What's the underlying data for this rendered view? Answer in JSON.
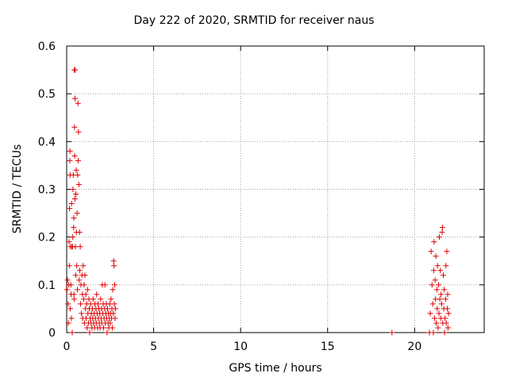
{
  "chart_data": {
    "type": "scatter",
    "title": "Day 222 of 2020, SRMTID for receiver naus",
    "xlabel": "GPS time / hours",
    "ylabel": "SRMTID / TECUs",
    "xlim": [
      0,
      24
    ],
    "ylim": [
      0,
      0.6
    ],
    "x_ticks": [
      0,
      5,
      10,
      15,
      20
    ],
    "y_ticks": [
      0,
      0.1,
      0.2,
      0.3,
      0.4,
      0.5,
      0.6
    ],
    "x_tick_labels": [
      "0",
      "5",
      "10",
      "15",
      "20"
    ],
    "y_tick_labels": [
      "0",
      "0.1",
      "0.2",
      "0.3",
      "0.4",
      "0.5",
      "0.6"
    ],
    "grid": true,
    "marker": "+",
    "color": "#dd0000",
    "series": [
      {
        "points": [
          [
            0.02,
            0.09
          ],
          [
            0.05,
            0.11
          ],
          [
            0.08,
            0.06
          ],
          [
            0.1,
            0.02
          ],
          [
            0.12,
            0.1
          ],
          [
            0.14,
            0.19
          ],
          [
            0.15,
            0.14
          ],
          [
            0.16,
            0.26
          ],
          [
            0.18,
            0.36
          ],
          [
            0.19,
            0.38
          ],
          [
            0.2,
            0.33
          ],
          [
            0.21,
            0.05
          ],
          [
            0.22,
            0.18
          ],
          [
            0.24,
            0.1
          ],
          [
            0.25,
            0.08
          ],
          [
            0.27,
            0.03
          ],
          [
            0.28,
            0.27
          ],
          [
            0.3,
            0.18
          ],
          [
            0.32,
            0.0
          ],
          [
            0.33,
            0.18
          ],
          [
            0.35,
            0.2
          ],
          [
            0.36,
            0.3
          ],
          [
            0.38,
            0.33
          ],
          [
            0.4,
            0.22
          ],
          [
            0.41,
            0.24
          ],
          [
            0.42,
            0.08
          ],
          [
            0.43,
            0.07
          ],
          [
            0.44,
            0.55
          ],
          [
            0.45,
            0.43
          ],
          [
            0.46,
            0.37
          ],
          [
            0.47,
            0.28
          ],
          [
            0.48,
            0.49
          ],
          [
            0.49,
            0.55
          ],
          [
            0.5,
            0.18
          ],
          [
            0.52,
            0.12
          ],
          [
            0.53,
            0.29
          ],
          [
            0.55,
            0.34
          ],
          [
            0.56,
            0.21
          ],
          [
            0.58,
            0.14
          ],
          [
            0.6,
            0.25
          ],
          [
            0.62,
            0.09
          ],
          [
            0.63,
            0.33
          ],
          [
            0.65,
            0.48
          ],
          [
            0.66,
            0.36
          ],
          [
            0.68,
            0.42
          ],
          [
            0.7,
            0.31
          ],
          [
            0.72,
            0.11
          ],
          [
            0.74,
            0.21
          ],
          [
            0.75,
            0.13
          ],
          [
            0.78,
            0.18
          ],
          [
            0.8,
            0.06
          ],
          [
            0.82,
            0.1
          ],
          [
            0.85,
            0.04
          ],
          [
            0.88,
            0.12
          ],
          [
            0.9,
            0.08
          ],
          [
            0.92,
            0.03
          ],
          [
            0.95,
            0.14
          ],
          [
            0.98,
            0.07
          ],
          [
            1.0,
            0.1
          ],
          [
            1.02,
            0.02
          ],
          [
            1.05,
            0.12
          ],
          [
            1.08,
            0.05
          ],
          [
            1.1,
            0.08
          ],
          [
            1.12,
            0.03
          ],
          [
            1.15,
            0.06
          ],
          [
            1.18,
            0.01
          ],
          [
            1.2,
            0.09
          ],
          [
            1.22,
            0.04
          ],
          [
            1.25,
            0.02
          ],
          [
            1.28,
            0.07
          ],
          [
            1.3,
            0.05
          ],
          [
            1.32,
            0.0
          ],
          [
            1.35,
            0.03
          ],
          [
            1.38,
            0.06
          ],
          [
            1.4,
            0.02
          ],
          [
            1.42,
            0.04
          ],
          [
            1.45,
            0.01
          ],
          [
            1.48,
            0.05
          ],
          [
            1.5,
            0.03
          ],
          [
            1.52,
            0.07
          ],
          [
            1.55,
            0.02
          ],
          [
            1.58,
            0.04
          ],
          [
            1.6,
            0.01
          ],
          [
            1.62,
            0.06
          ],
          [
            1.65,
            0.03
          ],
          [
            1.68,
            0.05
          ],
          [
            1.7,
            0.02
          ],
          [
            1.72,
            0.08
          ],
          [
            1.75,
            0.04
          ],
          [
            1.78,
            0.01
          ],
          [
            1.8,
            0.06
          ],
          [
            1.82,
            0.03
          ],
          [
            1.85,
            0.05
          ],
          [
            1.88,
            0.02
          ],
          [
            1.9,
            0.04
          ],
          [
            1.92,
            0.01
          ],
          [
            1.95,
            0.07
          ],
          [
            1.98,
            0.03
          ],
          [
            2.0,
            0.05
          ],
          [
            2.02,
            0.02
          ],
          [
            2.05,
            0.1
          ],
          [
            2.08,
            0.04
          ],
          [
            2.1,
            0.06
          ],
          [
            2.12,
            0.01
          ],
          [
            2.15,
            0.03
          ],
          [
            2.18,
            0.05
          ],
          [
            2.2,
            0.1
          ],
          [
            2.22,
            0.02
          ],
          [
            2.25,
            0.04
          ],
          [
            2.28,
            0.06
          ],
          [
            2.3,
            0.03
          ],
          [
            2.32,
            0.0
          ],
          [
            2.35,
            0.05
          ],
          [
            2.38,
            0.02
          ],
          [
            2.4,
            0.04
          ],
          [
            2.42,
            0.01
          ],
          [
            2.45,
            0.03
          ],
          [
            2.48,
            0.06
          ],
          [
            2.5,
            0.02
          ],
          [
            2.52,
            0.04
          ],
          [
            2.55,
            0.07
          ],
          [
            2.58,
            0.03
          ],
          [
            2.6,
            0.05
          ],
          [
            2.62,
            0.01
          ],
          [
            2.65,
            0.09
          ],
          [
            2.68,
            0.04
          ],
          [
            2.7,
            0.15
          ],
          [
            2.72,
            0.14
          ],
          [
            2.74,
            0.06
          ],
          [
            2.76,
            0.1
          ],
          [
            2.78,
            0.03
          ],
          [
            2.8,
            0.05
          ],
          [
            18.7,
            0.0
          ],
          [
            20.85,
            0.0
          ],
          [
            20.9,
            0.04
          ],
          [
            20.95,
            0.17
          ],
          [
            21.0,
            0.1
          ],
          [
            21.05,
            0.06
          ],
          [
            21.08,
            0.0
          ],
          [
            21.1,
            0.13
          ],
          [
            21.12,
            0.19
          ],
          [
            21.15,
            0.03
          ],
          [
            21.18,
            0.11
          ],
          [
            21.2,
            0.07
          ],
          [
            21.22,
            0.16
          ],
          [
            21.25,
            0.02
          ],
          [
            21.28,
            0.09
          ],
          [
            21.3,
            0.05
          ],
          [
            21.32,
            0.14
          ],
          [
            21.35,
            0.01
          ],
          [
            21.38,
            0.1
          ],
          [
            21.4,
            0.04
          ],
          [
            21.42,
            0.2
          ],
          [
            21.45,
            0.07
          ],
          [
            21.48,
            0.13
          ],
          [
            21.5,
            0.03
          ],
          [
            21.52,
            0.08
          ],
          [
            21.55,
            0.06
          ],
          [
            21.58,
            0.21
          ],
          [
            21.6,
            0.22
          ],
          [
            21.62,
            0.02
          ],
          [
            21.65,
            0.12
          ],
          [
            21.68,
            0.05
          ],
          [
            21.7,
            0.09
          ],
          [
            21.72,
            0.0
          ],
          [
            21.75,
            0.03
          ],
          [
            21.78,
            0.07
          ],
          [
            21.8,
            0.14
          ],
          [
            21.82,
            0.02
          ],
          [
            21.85,
            0.17
          ],
          [
            21.88,
            0.05
          ],
          [
            21.9,
            0.08
          ],
          [
            21.92,
            0.01
          ],
          [
            21.95,
            0.04
          ]
        ]
      }
    ]
  }
}
